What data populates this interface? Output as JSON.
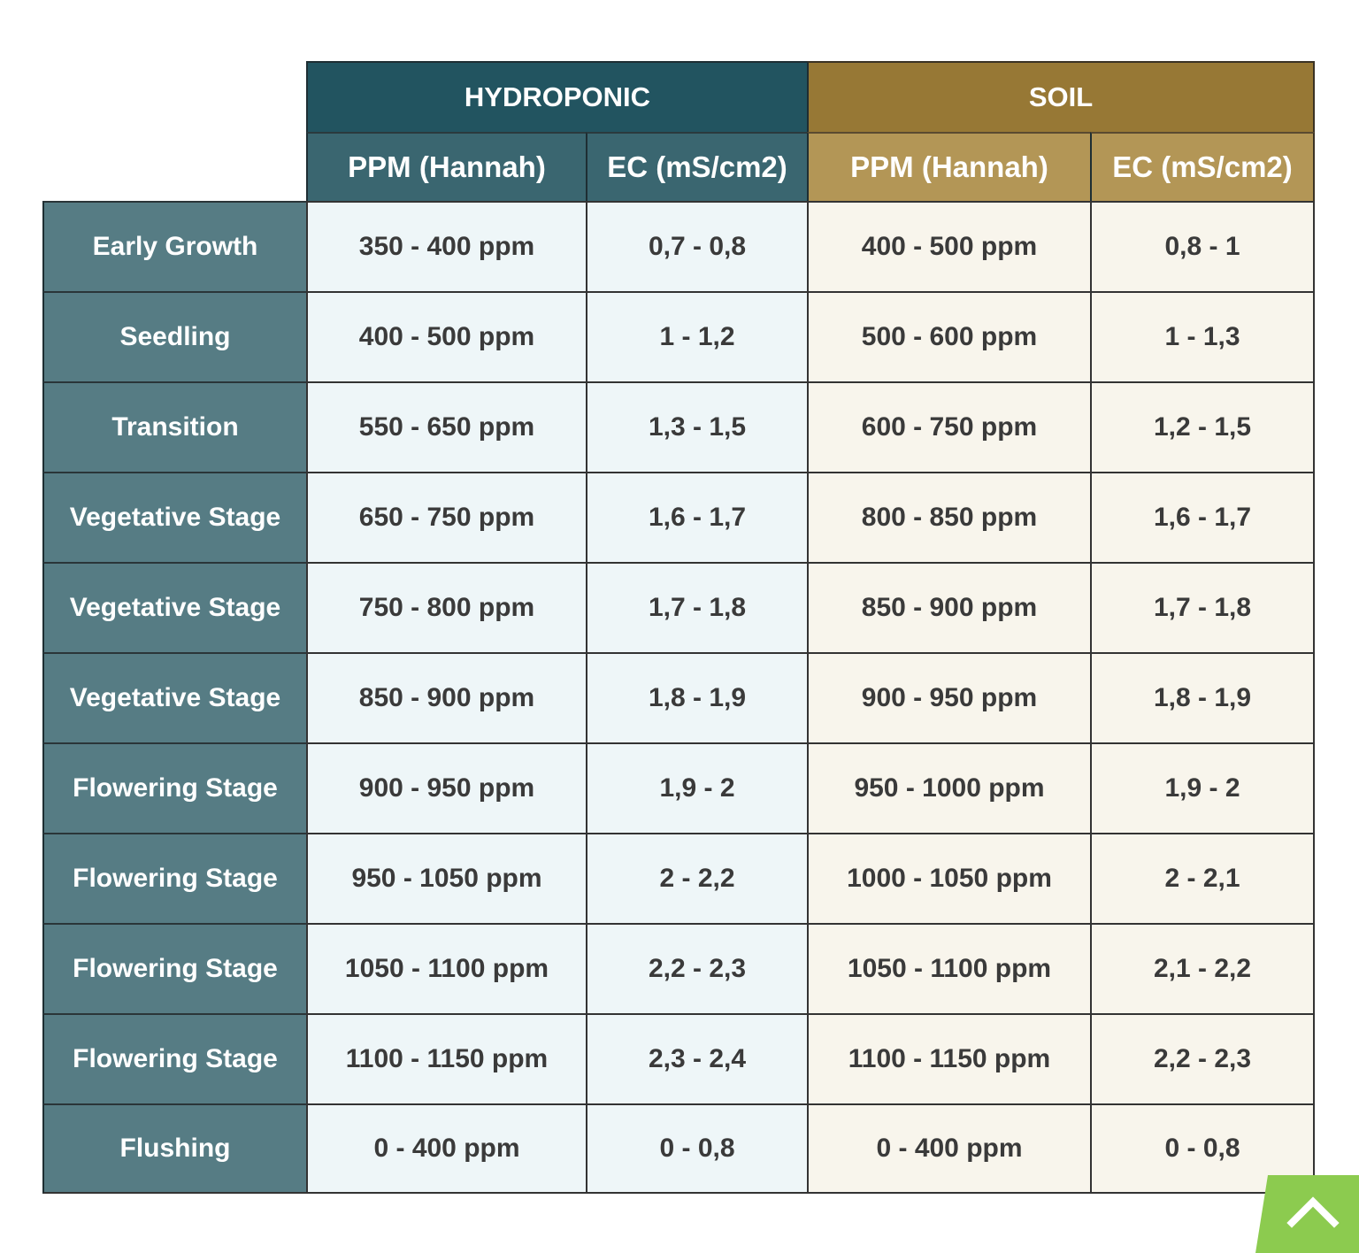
{
  "chart_data": {
    "type": "table",
    "groups": [
      {
        "name": "HYDROPONIC",
        "columns": [
          "PPM (Hannah)",
          "EC (mS/cm2)"
        ]
      },
      {
        "name": "SOIL",
        "columns": [
          "PPM (Hannah)",
          "EC (mS/cm2)"
        ]
      }
    ],
    "rows": [
      {
        "stage": "Early Growth",
        "hydro_ppm": "350 - 400 ppm",
        "hydro_ec": "0,7 - 0,8",
        "soil_ppm": "400 - 500 ppm",
        "soil_ec": "0,8 - 1"
      },
      {
        "stage": "Seedling",
        "hydro_ppm": "400 - 500 ppm",
        "hydro_ec": "1 - 1,2",
        "soil_ppm": "500 - 600 ppm",
        "soil_ec": "1 - 1,3"
      },
      {
        "stage": "Transition",
        "hydro_ppm": "550 - 650 ppm",
        "hydro_ec": "1,3 - 1,5",
        "soil_ppm": "600 - 750 ppm",
        "soil_ec": "1,2 - 1,5"
      },
      {
        "stage": "Vegetative Stage",
        "hydro_ppm": "650 - 750 ppm",
        "hydro_ec": "1,6 - 1,7",
        "soil_ppm": "800 - 850 ppm",
        "soil_ec": "1,6 - 1,7"
      },
      {
        "stage": "Vegetative Stage",
        "hydro_ppm": "750 - 800 ppm",
        "hydro_ec": "1,7 - 1,8",
        "soil_ppm": "850 - 900 ppm",
        "soil_ec": "1,7 - 1,8"
      },
      {
        "stage": "Vegetative Stage",
        "hydro_ppm": "850 - 900 ppm",
        "hydro_ec": "1,8 - 1,9",
        "soil_ppm": "900 - 950 ppm",
        "soil_ec": "1,8 - 1,9"
      },
      {
        "stage": "Flowering Stage",
        "hydro_ppm": "900 - 950 ppm",
        "hydro_ec": "1,9 - 2",
        "soil_ppm": "950 - 1000 ppm",
        "soil_ec": "1,9 - 2"
      },
      {
        "stage": "Flowering Stage",
        "hydro_ppm": "950 - 1050 ppm",
        "hydro_ec": "2 - 2,2",
        "soil_ppm": "1000 - 1050 ppm",
        "soil_ec": "2 - 2,1"
      },
      {
        "stage": "Flowering Stage",
        "hydro_ppm": "1050 - 1100 ppm",
        "hydro_ec": "2,2 - 2,3",
        "soil_ppm": "1050 - 1100 ppm",
        "soil_ec": "2,1 - 2,2"
      },
      {
        "stage": "Flowering Stage",
        "hydro_ppm": "1100 - 1150 ppm",
        "hydro_ec": "2,3 - 2,4",
        "soil_ppm": "1100 - 1150 ppm",
        "soil_ec": "2,2 - 2,3"
      },
      {
        "stage": "Flushing",
        "hydro_ppm": "0 - 400 ppm",
        "hydro_ec": "0 - 0,8",
        "soil_ppm": "0 - 400 ppm",
        "soil_ec": "0 - 0,8"
      }
    ],
    "colors": {
      "hydroponic_header": "#225460",
      "hydroponic_subheader": "#3a6670",
      "hydroponic_cells": "#eef6f8",
      "soil_header": "#977835",
      "soil_subheader": "#b39656",
      "soil_cells": "#f8f5ec",
      "stage_column": "#567c84"
    }
  },
  "scroll_top_button": {
    "icon": "chevron-up-icon",
    "color": "#8ccb4f"
  }
}
